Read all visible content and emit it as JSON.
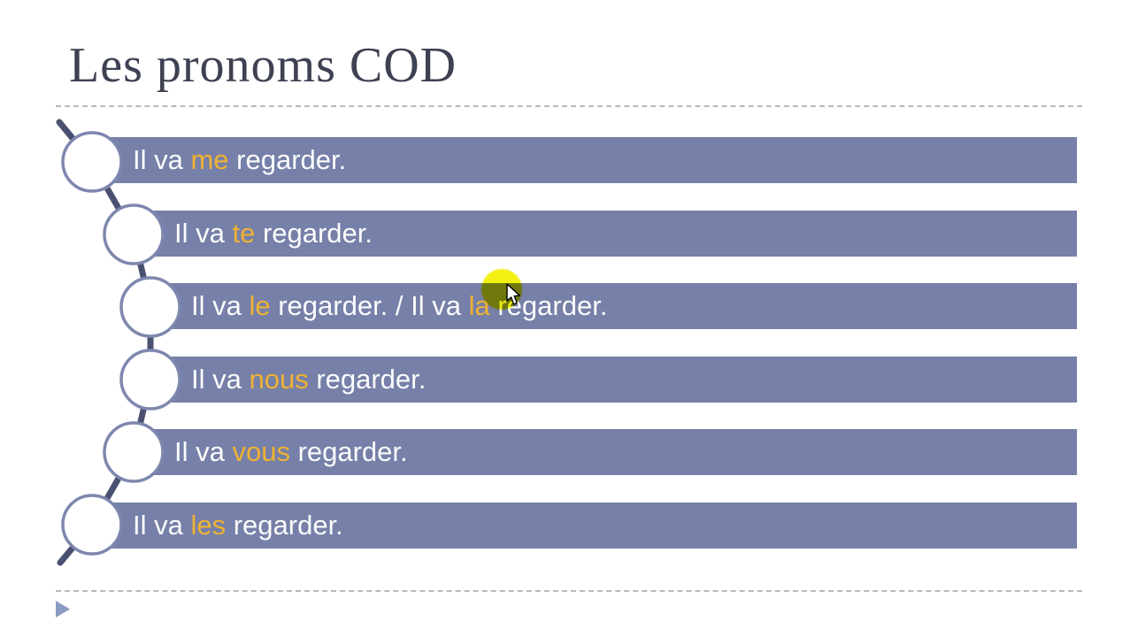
{
  "slide": {
    "title": "Les pronoms COD",
    "rows": [
      {
        "segments": [
          {
            "t": "Il va ",
            "hl": false
          },
          {
            "t": "me",
            "hl": true
          },
          {
            "t": " regarder.",
            "hl": false
          }
        ]
      },
      {
        "segments": [
          {
            "t": "Il va ",
            "hl": false
          },
          {
            "t": "te",
            "hl": true
          },
          {
            "t": " regarder.",
            "hl": false
          }
        ]
      },
      {
        "segments": [
          {
            "t": "Il va ",
            "hl": false
          },
          {
            "t": "le",
            "hl": true
          },
          {
            "t": " regarder. / Il va ",
            "hl": false
          },
          {
            "t": "la",
            "hl": true
          },
          {
            "t": " regarder.",
            "hl": false
          }
        ]
      },
      {
        "segments": [
          {
            "t": "Il va ",
            "hl": false
          },
          {
            "t": "nous",
            "hl": true
          },
          {
            "t": " regarder.",
            "hl": false
          }
        ]
      },
      {
        "segments": [
          {
            "t": "Il va ",
            "hl": false
          },
          {
            "t": "vous",
            "hl": true
          },
          {
            "t": " regarder.",
            "hl": false
          }
        ]
      },
      {
        "segments": [
          {
            "t": "Il va ",
            "hl": false
          },
          {
            "t": "les",
            "hl": true
          },
          {
            "t": " regarder.",
            "hl": false
          }
        ]
      }
    ]
  },
  "colors": {
    "bar": "#7680a8",
    "accent_text": "#eeb234",
    "bar_text": "#fcfcfd",
    "connector": "#4a5170",
    "circle_border": "#7d87ae",
    "circle_fill": "#ffffff",
    "title": "#3e4152",
    "divider": "#b9b9b9",
    "footer_arrow": "#8b9cc3",
    "highlight_dot": "#f2ef12"
  },
  "overlays": {
    "highlight_dot_present": true,
    "cursor_type": "arrow"
  }
}
